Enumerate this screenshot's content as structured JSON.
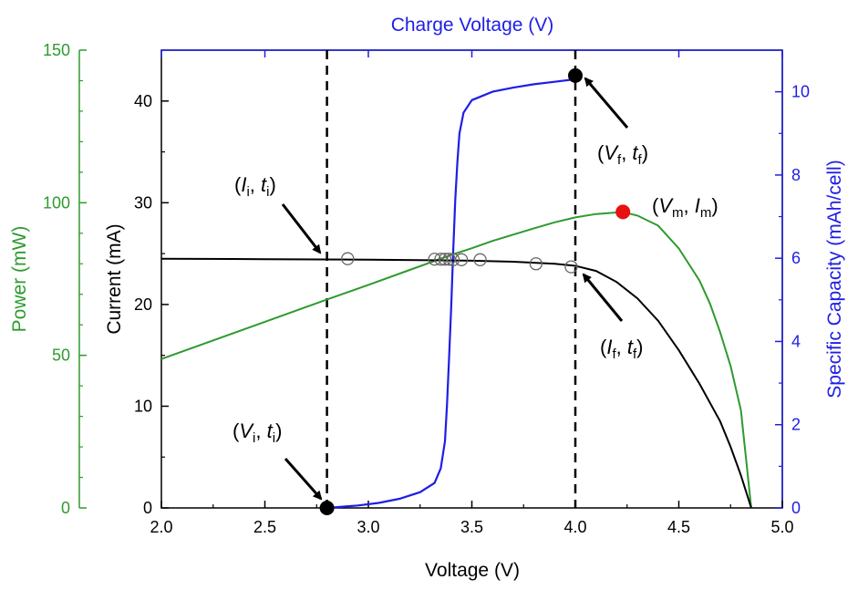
{
  "colors": {
    "power": "#2e9a2e",
    "charge": "#1e1ee6",
    "current": "#000000",
    "highlight": "#e81010"
  },
  "chart_data": {
    "type": "line",
    "title": "",
    "axes": {
      "x_bottom": {
        "label": "Voltage (V)",
        "range": [
          2.0,
          5.0
        ],
        "ticks": [
          2.0,
          2.5,
          3.0,
          3.5,
          4.0,
          4.5,
          5.0
        ],
        "tick_labels": [
          "2.0",
          "2.5",
          "3.0",
          "3.5",
          "4.0",
          "4.5",
          "5.0"
        ]
      },
      "x_top": {
        "label": "Charge Voltage (V)"
      },
      "y_current": {
        "label": "Current (mA)",
        "range": [
          0,
          45
        ],
        "ticks": [
          0,
          10,
          20,
          30,
          40
        ],
        "tick_labels": [
          "0",
          "10",
          "20",
          "30",
          "40"
        ]
      },
      "y_power": {
        "label": "Power (mW)",
        "range": [
          0,
          150
        ],
        "ticks": [
          0,
          50,
          100,
          150
        ],
        "tick_labels": [
          "0",
          "50",
          "100",
          "150"
        ]
      },
      "y_capacity": {
        "label": "Specific Capacity (mAh/cell)",
        "range": [
          0,
          11
        ],
        "ticks": [
          0,
          2,
          4,
          6,
          8,
          10
        ],
        "tick_labels": [
          "0",
          "2",
          "4",
          "6",
          "8",
          "10"
        ]
      }
    },
    "series": [
      {
        "axis": "y_current",
        "color_key": "current",
        "points": [
          [
            2.0,
            24.5
          ],
          [
            2.5,
            24.45
          ],
          [
            3.0,
            24.4
          ],
          [
            3.3,
            24.35
          ],
          [
            3.5,
            24.3
          ],
          [
            3.7,
            24.2
          ],
          [
            3.9,
            24.0
          ],
          [
            4.0,
            23.8
          ],
          [
            4.1,
            23.3
          ],
          [
            4.2,
            22.2
          ],
          [
            4.3,
            20.6
          ],
          [
            4.4,
            18.4
          ],
          [
            4.5,
            15.5
          ],
          [
            4.6,
            12.2
          ],
          [
            4.7,
            8.5
          ],
          [
            4.75,
            6.0
          ],
          [
            4.8,
            3.2
          ],
          [
            4.85,
            0.0
          ]
        ]
      },
      {
        "axis": "y_power",
        "color_key": "power",
        "points": [
          [
            2.0,
            48.8
          ],
          [
            2.5,
            61.0
          ],
          [
            2.8,
            68.3
          ],
          [
            3.0,
            73.1
          ],
          [
            3.2,
            78.0
          ],
          [
            3.4,
            82.9
          ],
          [
            3.5,
            85.1
          ],
          [
            3.6,
            87.5
          ],
          [
            3.8,
            91.6
          ],
          [
            3.9,
            93.6
          ],
          [
            4.0,
            95.2
          ],
          [
            4.1,
            96.3
          ],
          [
            4.2,
            96.8
          ],
          [
            4.25,
            96.6
          ],
          [
            4.3,
            95.8
          ],
          [
            4.4,
            92.5
          ],
          [
            4.5,
            85.0
          ],
          [
            4.6,
            74.5
          ],
          [
            4.65,
            67.0
          ],
          [
            4.7,
            57.5
          ],
          [
            4.75,
            46.5
          ],
          [
            4.8,
            32.0
          ],
          [
            4.85,
            0.0
          ]
        ]
      },
      {
        "axis": "y_capacity",
        "color_key": "charge",
        "points": [
          [
            2.8,
            0.0
          ],
          [
            2.85,
            0.02
          ],
          [
            2.95,
            0.06
          ],
          [
            3.05,
            0.12
          ],
          [
            3.15,
            0.22
          ],
          [
            3.25,
            0.38
          ],
          [
            3.32,
            0.6
          ],
          [
            3.35,
            0.95
          ],
          [
            3.37,
            1.6
          ],
          [
            3.38,
            2.5
          ],
          [
            3.39,
            3.6
          ],
          [
            3.4,
            4.8
          ],
          [
            3.41,
            6.2
          ],
          [
            3.42,
            7.4
          ],
          [
            3.43,
            8.3
          ],
          [
            3.44,
            9.0
          ],
          [
            3.46,
            9.5
          ],
          [
            3.5,
            9.8
          ],
          [
            3.6,
            10.0
          ],
          [
            3.7,
            10.1
          ],
          [
            3.8,
            10.18
          ],
          [
            3.9,
            10.24
          ],
          [
            4.0,
            10.3
          ]
        ]
      }
    ],
    "markers": {
      "open_circles": [
        [
          2.9,
          24.5
        ],
        [
          3.32,
          24.45
        ],
        [
          3.35,
          24.45
        ],
        [
          3.37,
          24.45
        ],
        [
          3.39,
          24.45
        ],
        [
          3.41,
          24.4
        ],
        [
          3.45,
          24.4
        ],
        [
          3.54,
          24.4
        ],
        [
          3.81,
          24.0
        ],
        [
          3.98,
          23.7
        ]
      ],
      "filled_black": [
        [
          2.8,
          0.0
        ],
        [
          4.0,
          42.5
        ]
      ],
      "filled_red": [
        [
          4.23,
          29.1
        ]
      ]
    },
    "vlines": [
      2.8,
      4.0
    ],
    "annotations": [
      {
        "id": "vi-ti",
        "text": "(Vi, ti)",
        "at": [
          2.8,
          0.0
        ]
      },
      {
        "id": "ii-ti",
        "text": "(Ii, ti)",
        "at": [
          2.8,
          24.5
        ]
      },
      {
        "id": "vf-tf",
        "text": "(Vf, tf)",
        "at": [
          4.0,
          42.5
        ]
      },
      {
        "id": "if-tf",
        "text": "(If, tf)",
        "at": [
          4.0,
          23.7
        ]
      },
      {
        "id": "vm-im",
        "text": "(Vm, Im)",
        "at": [
          4.23,
          29.1
        ]
      }
    ],
    "annotation_parts": {
      "vi": {
        "open": "(",
        "v1": "V",
        "s1": "i",
        "sep": ", ",
        "v2": "t",
        "s2": "i",
        "close": ")"
      },
      "ii": {
        "open": "(",
        "v1": "I",
        "s1": "i",
        "sep": ", ",
        "v2": "t",
        "s2": "i",
        "close": ")"
      },
      "vf": {
        "open": "(",
        "v1": "V",
        "s1": "f",
        "sep": ", ",
        "v2": "t",
        "s2": "f",
        "close": ")"
      },
      "if": {
        "open": "(",
        "v1": "I",
        "s1": "f",
        "sep": ", ",
        "v2": "t",
        "s2": "f",
        "close": ")"
      },
      "vm": {
        "open": "(",
        "v1": "V",
        "s1": "m",
        "sep": ", ",
        "v2": "I",
        "s2": "m",
        "close": ")"
      }
    }
  }
}
